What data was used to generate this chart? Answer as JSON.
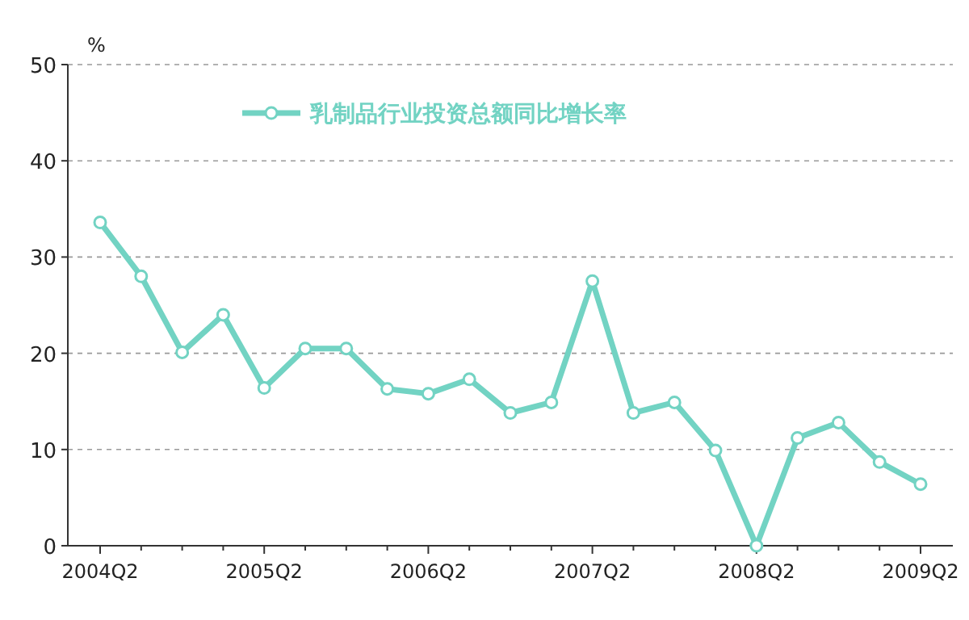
{
  "chart_data": {
    "type": "line",
    "ylabel": "%",
    "categories": [
      "2004Q2",
      null,
      null,
      null,
      "2005Q2",
      null,
      null,
      null,
      "2006Q2",
      null,
      null,
      null,
      "2007Q2",
      null,
      null,
      null,
      "2008Q2",
      null,
      null,
      null,
      "2009Q2"
    ],
    "series": [
      {
        "name": "乳制品行业投资总额同比增长率",
        "color": "#72d3c3",
        "values": [
          33.6,
          28,
          20.1,
          24,
          16.4,
          20.5,
          20.5,
          16.3,
          15.8,
          17.3,
          13.8,
          14.9,
          27.5,
          13.8,
          14.9,
          9.9,
          0,
          11.2,
          12.8,
          8.7,
          6.4
        ]
      }
    ],
    "ylim": [
      0,
      50
    ],
    "yticks": [
      0,
      10,
      20,
      30,
      40,
      50
    ],
    "grid": "y",
    "legend": "top",
    "marker": "circle",
    "line_style": "solid"
  }
}
